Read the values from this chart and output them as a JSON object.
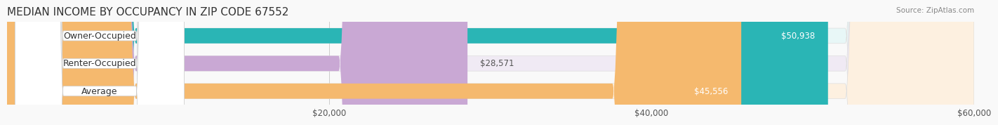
{
  "title": "MEDIAN INCOME BY OCCUPANCY IN ZIP CODE 67552",
  "source_text": "Source: ZipAtlas.com",
  "categories": [
    "Owner-Occupied",
    "Renter-Occupied",
    "Average"
  ],
  "values": [
    50938,
    28571,
    45556
  ],
  "value_labels": [
    "$50,938",
    "$28,571",
    "$45,556"
  ],
  "bar_colors": [
    "#2ab5b5",
    "#c9a8d4",
    "#f5b96e"
  ],
  "bar_bg_colors": [
    "#e8f7f7",
    "#f0eaf4",
    "#fdf0e0"
  ],
  "xlim": [
    0,
    60000
  ],
  "xtick_values": [
    20000,
    40000,
    60000
  ],
  "xtick_labels": [
    "$20,000",
    "$40,000",
    "$60,000"
  ],
  "label_fontsize": 9,
  "value_fontsize": 8.5,
  "title_fontsize": 11,
  "bar_height": 0.55,
  "background_color": "#f9f9f9"
}
